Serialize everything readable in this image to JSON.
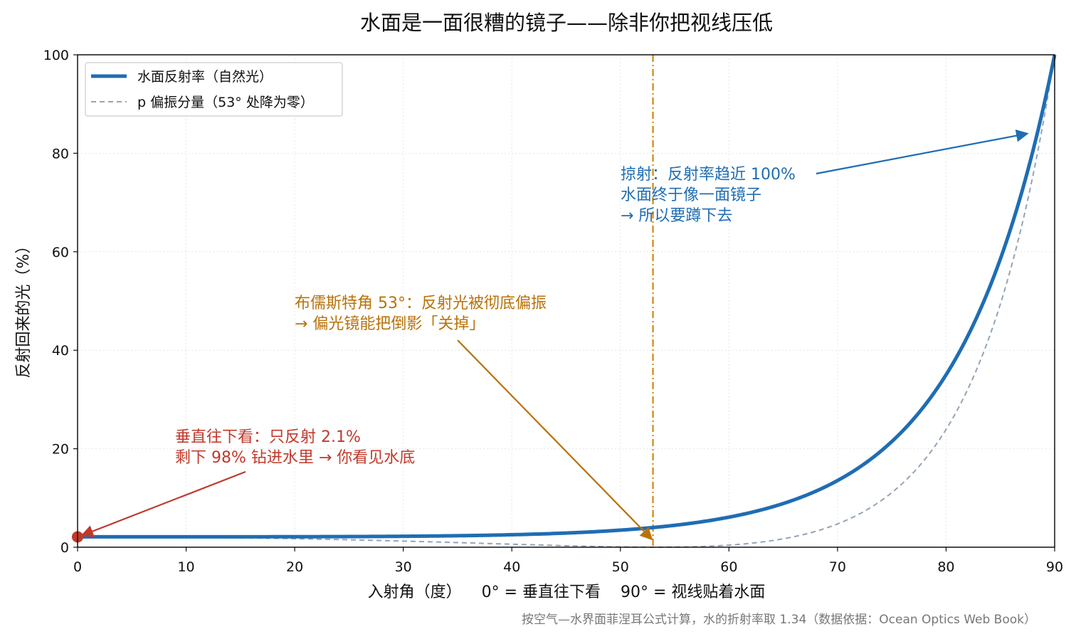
{
  "chart_data": {
    "type": "line",
    "title": "水面是一面很糟的镜子——除非你把视线压低",
    "xlabel": "入射角（度）    0° = 垂直往下看    90° = 视线贴着水面",
    "ylabel": "反射回来的光（%）",
    "xlim": [
      0,
      90
    ],
    "ylim": [
      0,
      100
    ],
    "xticks": [
      "0",
      "10",
      "20",
      "30",
      "40",
      "50",
      "60",
      "70",
      "80",
      "90"
    ],
    "yticks": [
      "0",
      "20",
      "40",
      "60",
      "80",
      "100"
    ],
    "grid": true,
    "legend_position": "top-left",
    "refractive_index": 1.34,
    "brewster_angle_deg": 53,
    "series": [
      {
        "name": "水面反射率（自然光）",
        "style": "solid",
        "color": "#1f6db3",
        "x": [
          0,
          10,
          20,
          30,
          40,
          45,
          50,
          53,
          55,
          60,
          65,
          70,
          75,
          80,
          85,
          87,
          88,
          89,
          90
        ],
        "y": [
          2.1,
          2.1,
          2.2,
          2.3,
          2.7,
          3.1,
          3.7,
          4.2,
          4.6,
          6.2,
          9.0,
          13.8,
          22.2,
          36.9,
          61.6,
          74.9,
          82.2,
          90.1,
          100
        ]
      },
      {
        "name": "p 偏振分量（53° 处降为零）",
        "style": "dashed",
        "color": "#94a3b8",
        "x": [
          0,
          10,
          20,
          30,
          40,
          45,
          50,
          53,
          55,
          60,
          65,
          70,
          75,
          80,
          85,
          87,
          88,
          89,
          90
        ],
        "y": [
          2.1,
          2.0,
          1.7,
          1.2,
          0.6,
          0.3,
          0.05,
          0,
          0.05,
          0.6,
          2.3,
          6.1,
          13.5,
          27.5,
          53.0,
          68.4,
          77.4,
          87.8,
          100
        ]
      }
    ],
    "vline": {
      "x": 53,
      "color": "#d4860b",
      "style": "dashdot"
    },
    "marker": {
      "x": 0,
      "y": 2.1,
      "color": "#c0392b"
    },
    "annotations": [
      {
        "lines": [
          "掠射：反射率趋近 100%",
          "水面终于像一面镜子",
          "→ 所以要蹲下去"
        ],
        "color": "#1f6db3",
        "target": [
          87.5,
          84
        ]
      },
      {
        "lines": [
          "布儒斯特角 53°：反射光被彻底偏振",
          "→ 偏光镜能把倒影「关掉」"
        ],
        "color": "#b8720a",
        "target": [
          52.9,
          1.6
        ]
      },
      {
        "lines": [
          "垂直往下看：只反射 2.1%",
          "剩下 98% 钻进水里 → 你看见水底"
        ],
        "color": "#c0392b",
        "target": [
          0.4,
          2.4
        ]
      }
    ],
    "source_note": "按空气—水界面菲涅耳公式计算，水的折射率取 1.34（数据依据：Ocean Optics Web Book）"
  }
}
